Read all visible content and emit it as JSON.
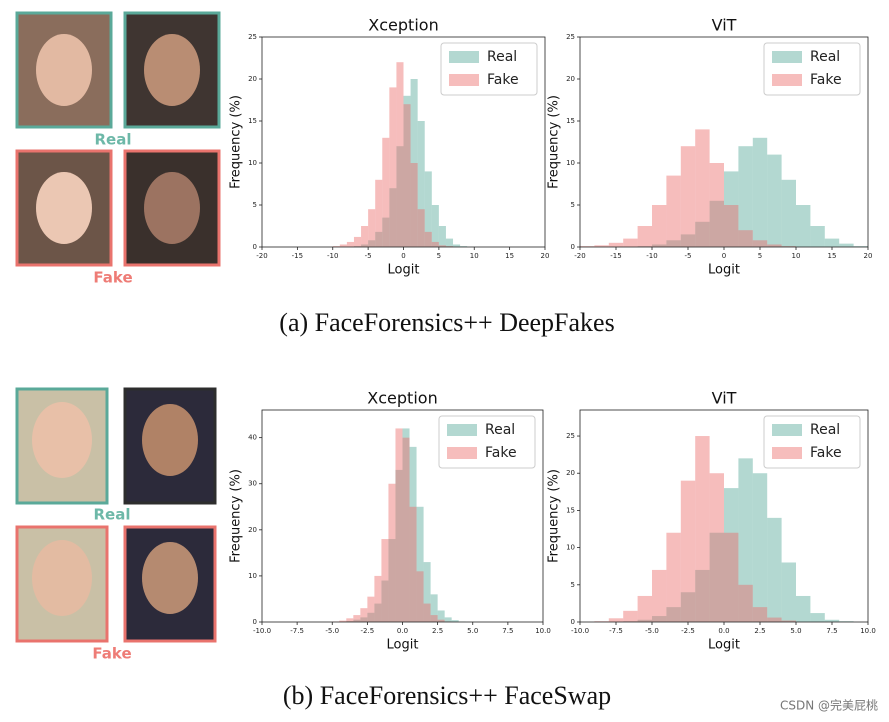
{
  "chart_data": [
    {
      "type": "histogram",
      "title": "Xception",
      "x_label": "Logit",
      "y_label": "Frequency (%)",
      "bins": [
        -10,
        -9,
        -8,
        -7,
        -6,
        -5,
        -4,
        -3,
        -2,
        -1,
        0,
        1,
        2,
        3,
        4,
        5,
        6,
        7,
        8,
        9
      ],
      "series": [
        {
          "name": "Real",
          "color": "#56a899",
          "values": [
            0,
            0,
            0,
            0.1,
            0.3,
            0.8,
            1.8,
            3.5,
            7,
            12,
            18,
            20,
            15,
            9,
            5,
            2.5,
            1,
            0.3,
            0.1
          ]
        },
        {
          "name": "Fake",
          "color": "#ec6c6a",
          "values": [
            0.1,
            0.3,
            0.6,
            1.2,
            2.5,
            4.5,
            8,
            13,
            19,
            22,
            17,
            10,
            4.5,
            1.8,
            0.6,
            0.2,
            0.1,
            0,
            0
          ]
        }
      ],
      "xlim": [
        -20,
        20
      ],
      "ylim": [
        0,
        25
      ],
      "xticks": [
        -20,
        -15,
        -10,
        -5,
        0,
        5,
        10,
        15,
        20
      ],
      "yticks": [
        0,
        5,
        10,
        15,
        20,
        25
      ],
      "legend": "upper right"
    },
    {
      "type": "histogram",
      "title": "ViT",
      "x_label": "Logit",
      "y_label": "Frequency (%)",
      "bins": [
        -20,
        -18,
        -16,
        -14,
        -12,
        -10,
        -8,
        -6,
        -4,
        -2,
        0,
        2,
        4,
        6,
        8,
        10,
        12,
        14,
        16,
        18,
        20
      ],
      "series": [
        {
          "name": "Real",
          "color": "#56a899",
          "values": [
            0,
            0,
            0,
            0,
            0.1,
            0.3,
            0.8,
            1.5,
            3,
            5.5,
            9,
            12,
            13,
            11,
            8,
            5,
            2.5,
            1,
            0.4,
            0.1
          ]
        },
        {
          "name": "Fake",
          "color": "#ec6c6a",
          "values": [
            0.1,
            0.2,
            0.5,
            1,
            2.5,
            5,
            8.5,
            12,
            14,
            10,
            5,
            2,
            0.8,
            0.3,
            0.1,
            0,
            0,
            0,
            0,
            0
          ]
        }
      ],
      "xlim": [
        -20,
        20
      ],
      "ylim": [
        0,
        25
      ],
      "xticks": [
        -20,
        -15,
        -10,
        -5,
        0,
        5,
        10,
        15,
        20
      ],
      "yticks": [
        0,
        5,
        10,
        15,
        20,
        25
      ],
      "legend": "upper right"
    },
    {
      "type": "histogram",
      "title": "Xception",
      "x_label": "Logit",
      "y_label": "Frequency (%)",
      "bins": [
        -5,
        -4.5,
        -4,
        -3.5,
        -3,
        -2.5,
        -2,
        -1.5,
        -1,
        -0.5,
        0,
        0.5,
        1,
        1.5,
        2,
        2.5,
        3,
        3.5,
        4,
        4.5,
        5
      ],
      "series": [
        {
          "name": "Real",
          "color": "#56a899",
          "values": [
            0,
            0,
            0.2,
            0.5,
            1,
            2,
            4,
            9,
            18,
            33,
            42,
            38,
            25,
            13,
            6,
            2.5,
            1,
            0.4,
            0.1,
            0
          ]
        },
        {
          "name": "Fake",
          "color": "#ec6c6a",
          "values": [
            0.1,
            0.3,
            0.8,
            1.5,
            3,
            5.5,
            10,
            18,
            30,
            42,
            40,
            25,
            11,
            4,
            1.5,
            0.5,
            0.1,
            0,
            0,
            0
          ]
        }
      ],
      "xlim": [
        -10,
        10
      ],
      "ylim": [
        0,
        46
      ],
      "xticks": [
        {
          "value": -10,
          "label": "-10.0"
        },
        -7.5,
        {
          "value": -5,
          "label": "-5.0"
        },
        -2.5,
        {
          "value": 0,
          "label": "0.0"
        },
        2.5,
        {
          "value": 5,
          "label": "5.0"
        },
        7.5,
        {
          "value": 10,
          "label": "10.0"
        }
      ],
      "yticks": [
        0,
        10,
        20,
        30,
        40
      ],
      "legend": "upper right"
    },
    {
      "type": "histogram",
      "title": "ViT",
      "x_label": "Logit",
      "y_label": "Frequency (%)",
      "bins": [
        -9,
        -8,
        -7,
        -6,
        -5,
        -4,
        -3,
        -2,
        -1,
        0,
        1,
        2,
        3,
        4,
        5,
        6,
        7,
        8,
        9
      ],
      "series": [
        {
          "name": "Real",
          "color": "#56a899",
          "values": [
            0,
            0,
            0.1,
            0.3,
            0.8,
            2,
            4,
            7,
            12,
            18,
            22,
            20,
            14,
            8,
            3.5,
            1.2,
            0.3,
            0.1
          ]
        },
        {
          "name": "Fake",
          "color": "#ec6c6a",
          "values": [
            0.1,
            0.5,
            1.5,
            3.5,
            7,
            12,
            19,
            25,
            20,
            12,
            5,
            2,
            0.6,
            0.2,
            0,
            0,
            0,
            0
          ]
        }
      ],
      "xlim": [
        -10,
        10
      ],
      "ylim": [
        0,
        28.5
      ],
      "xticks": [
        {
          "value": -10,
          "label": "-10.0"
        },
        -7.5,
        {
          "value": -5,
          "label": "-5.0"
        },
        -2.5,
        {
          "value": 0,
          "label": "0.0"
        },
        2.5,
        {
          "value": 5,
          "label": "5.0"
        },
        7.5,
        {
          "value": 10,
          "label": "10.0"
        }
      ],
      "yticks": [
        0,
        5,
        10,
        15,
        20,
        25
      ],
      "legend": "upper right"
    }
  ],
  "panels": [
    {
      "real_label": "Real",
      "fake_label": "Fake",
      "caption": "(a) FaceForensics++ DeepFakes"
    },
    {
      "real_label": "Real",
      "fake_label": "Fake",
      "caption": "(b) FaceForensics++ FaceSwap"
    }
  ],
  "watermark": "CSDN @完美屁桃"
}
